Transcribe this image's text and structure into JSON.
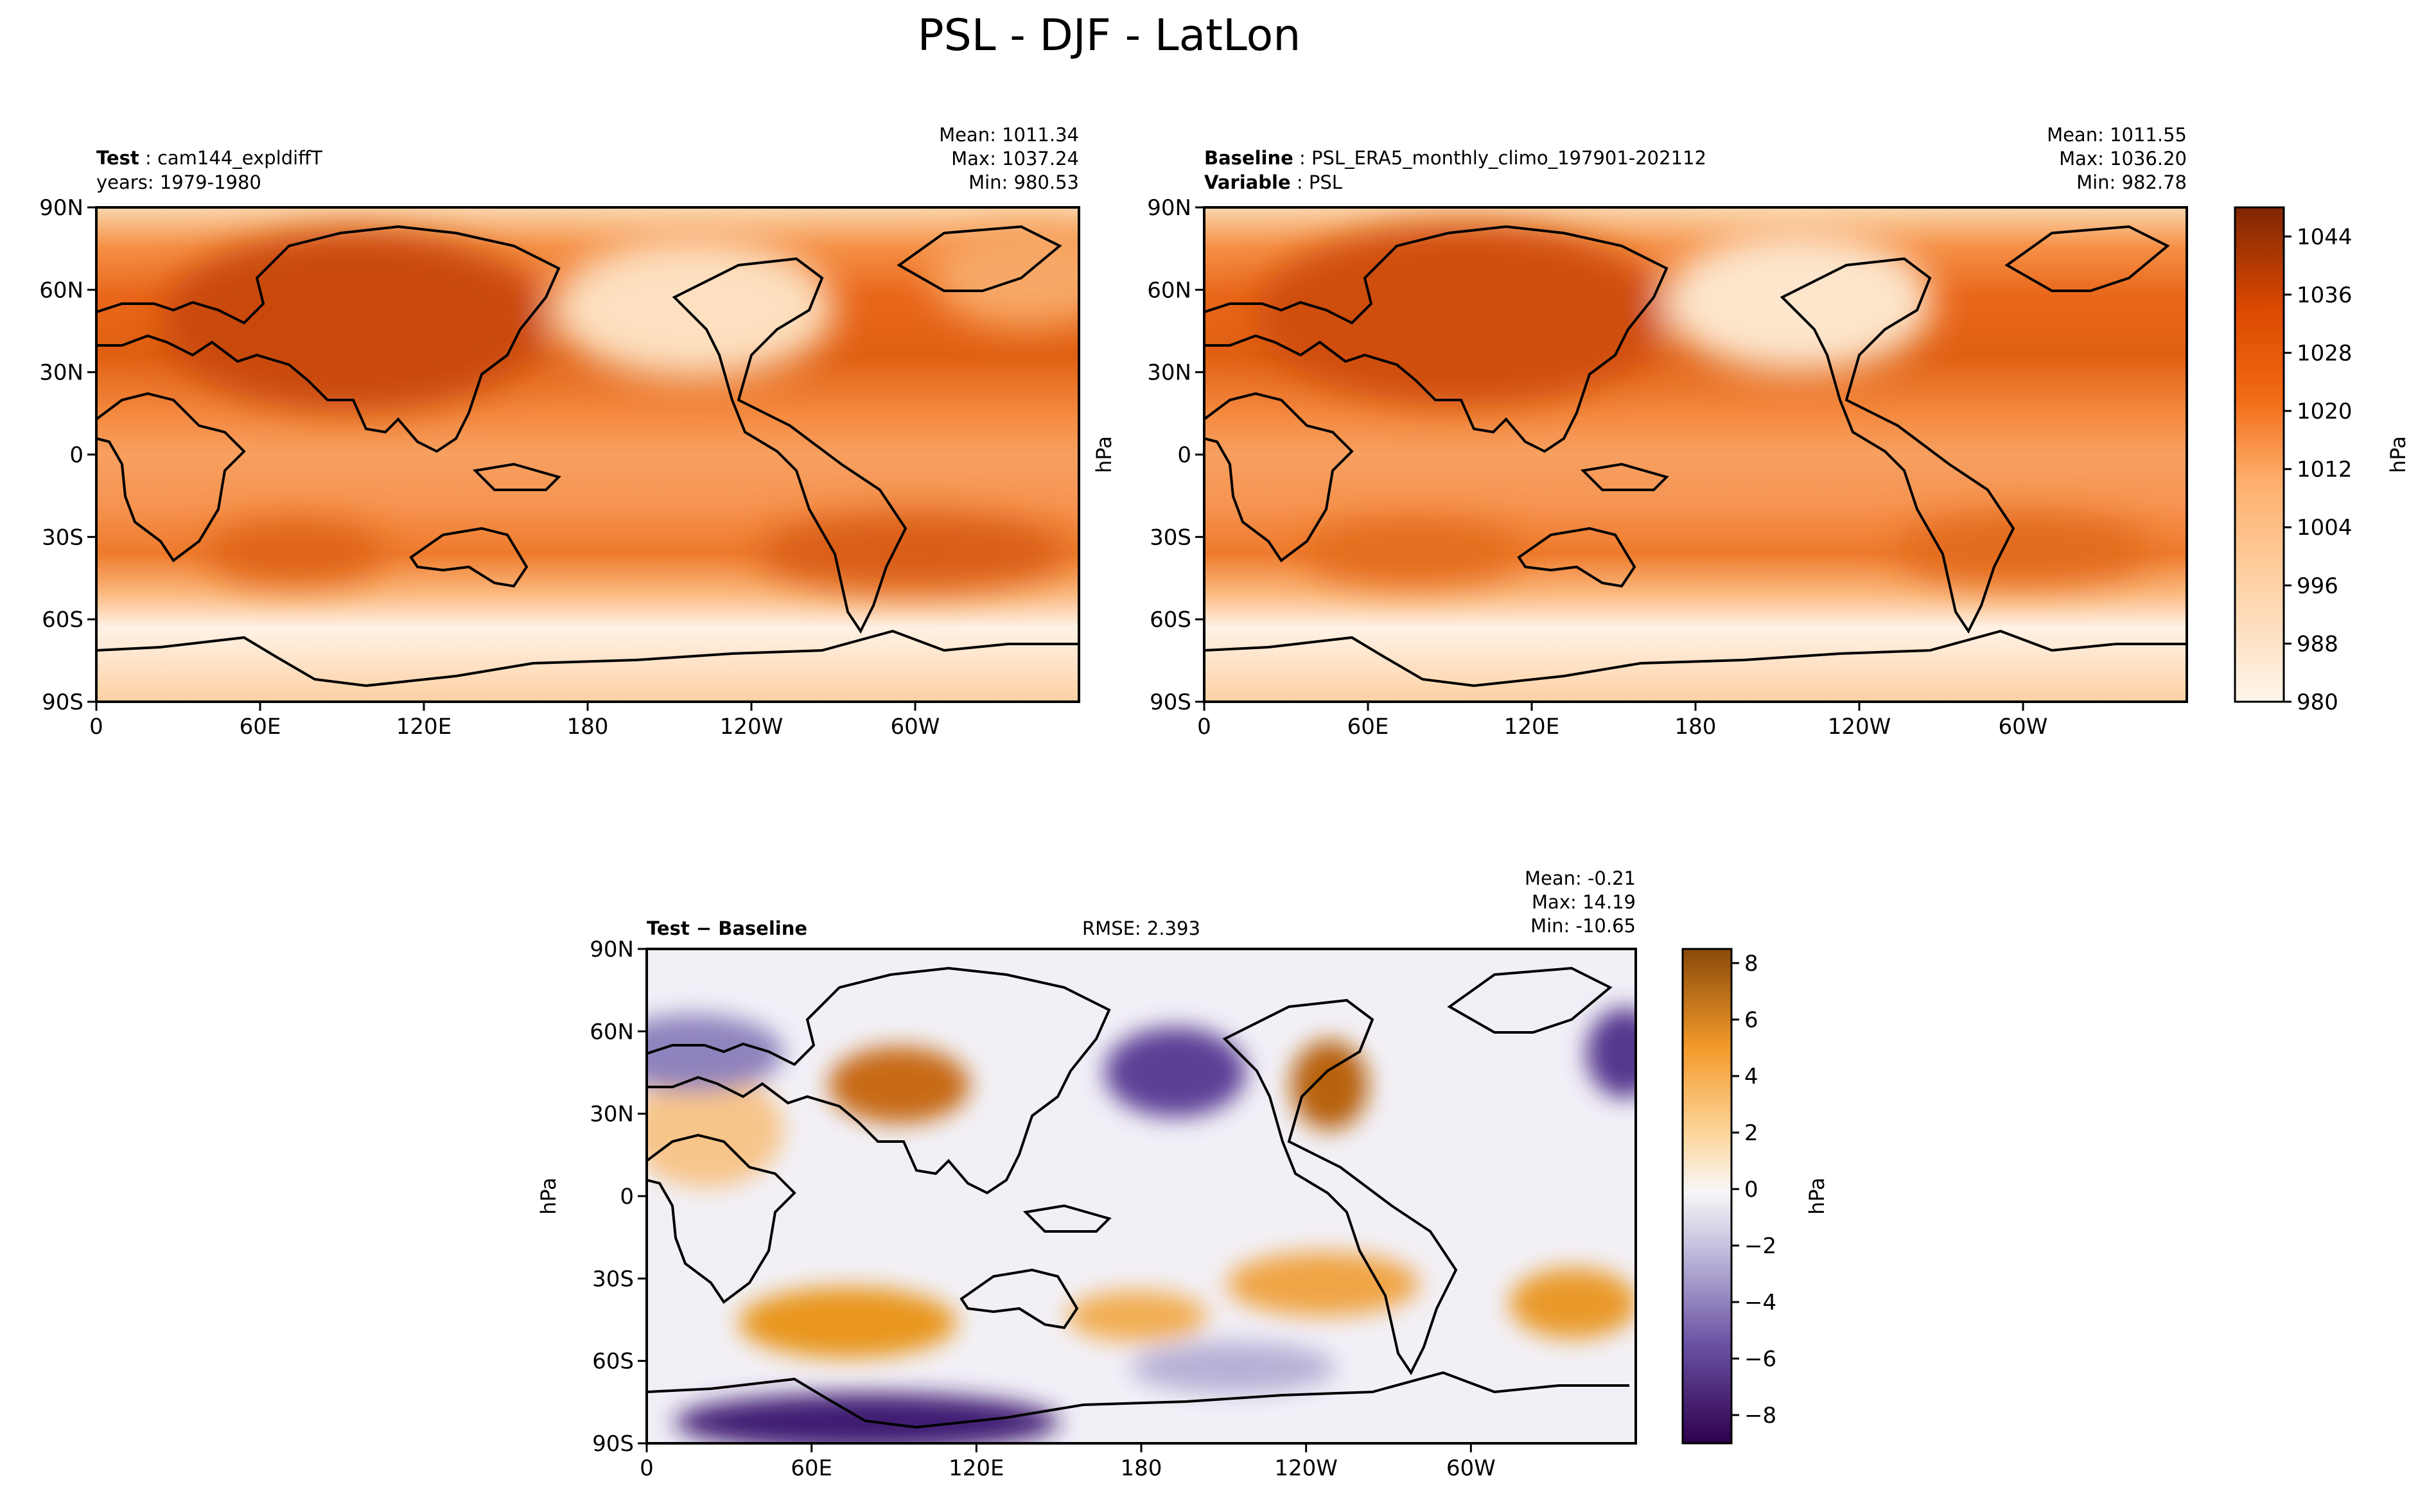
{
  "figure": {
    "title": "PSL - DJF - LatLon"
  },
  "chart_data": [
    {
      "type": "heatmap",
      "panel": "test",
      "label_bold": "Test",
      "label_text": "cam144_expldiffT",
      "line2_text": "years: 1979-1980",
      "stats": [
        "Mean: 1011.34",
        "Max: 1037.24",
        "Min: 980.53"
      ],
      "x_ticks": [
        "0",
        "60E",
        "120E",
        "180",
        "120W",
        "60W"
      ],
      "y_ticks": [
        "90N",
        "60N",
        "30N",
        "0",
        "30S",
        "60S",
        "90S"
      ],
      "xlim": [
        0,
        360
      ],
      "ylim": [
        -90,
        90
      ],
      "units": "hPa"
    },
    {
      "type": "heatmap",
      "panel": "baseline",
      "label_bold": "Baseline",
      "label_text": "PSL_ERA5_monthly_climo_197901-202112",
      "label2_bold": "Variable",
      "label2_text": "PSL",
      "stats": [
        "Mean: 1011.55",
        "Max: 1036.20",
        "Min: 982.78"
      ],
      "x_ticks": [
        "0",
        "60E",
        "120E",
        "180",
        "120W",
        "60W"
      ],
      "y_ticks": [
        "90N",
        "60N",
        "30N",
        "0",
        "30S",
        "60S",
        "90S"
      ],
      "ylabel": "hPa",
      "xlim": [
        0,
        360
      ],
      "ylim": [
        -90,
        90
      ],
      "colorbar": {
        "label": "hPa",
        "ticks": [
          "1044",
          "1036",
          "1028",
          "1020",
          "1012",
          "1004",
          "996",
          "988",
          "980"
        ],
        "range": [
          980,
          1048
        ]
      }
    },
    {
      "type": "heatmap",
      "panel": "difference",
      "label_bold": "Test − Baseline",
      "rmse": "RMSE: 2.393",
      "stats": [
        "Mean: -0.21",
        "Max: 14.19",
        "Min: -10.65"
      ],
      "x_ticks": [
        "0",
        "60E",
        "120E",
        "180",
        "120W",
        "60W"
      ],
      "y_ticks": [
        "90N",
        "60N",
        "30N",
        "0",
        "30S",
        "60S",
        "90S"
      ],
      "ylabel": "hPa",
      "xlim": [
        0,
        360
      ],
      "ylim": [
        -90,
        90
      ],
      "colorbar": {
        "label": "hPa",
        "ticks": [
          "8",
          "6",
          "4",
          "2",
          "0",
          "−2",
          "−4",
          "−6",
          "−8"
        ],
        "range": [
          -9,
          8.5
        ]
      }
    }
  ],
  "colors": {
    "psl_low": "#fff5eb",
    "psl_mid": "#fd8d3c",
    "psl_high": "#7f2704",
    "diff_pos": "#b35806",
    "diff_neg": "#2d004b",
    "diff_zero": "#f7f7f7"
  }
}
